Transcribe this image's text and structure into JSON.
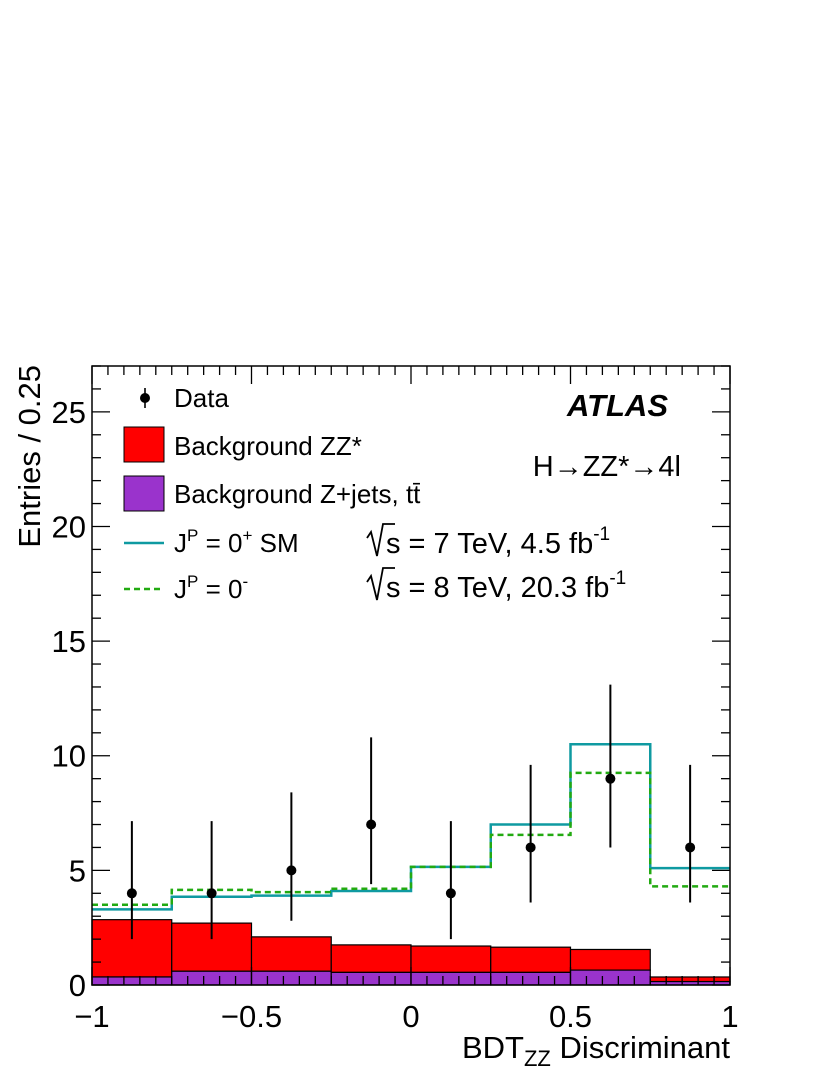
{
  "chart_data": {
    "type": "histogram",
    "xlabel": "BDT",
    "xlabel_sub": "ZZ",
    "xlabel_suffix": " Discriminant",
    "ylabel": "Entries / 0.25",
    "xlim": [
      -1,
      1
    ],
    "ylim": [
      0,
      27
    ],
    "x_ticks": [
      {
        "value": -1,
        "label": "−1"
      },
      {
        "value": -0.5,
        "label": "−0.5"
      },
      {
        "value": 0,
        "label": "0"
      },
      {
        "value": 0.5,
        "label": "0.5"
      },
      {
        "value": 1,
        "label": "1"
      }
    ],
    "y_ticks": [
      {
        "value": 0,
        "label": "0"
      },
      {
        "value": 5,
        "label": "5"
      },
      {
        "value": 10,
        "label": "10"
      },
      {
        "value": 15,
        "label": "15"
      },
      {
        "value": 20,
        "label": "20"
      },
      {
        "value": 25,
        "label": "25"
      }
    ],
    "bin_edges": [
      -1,
      -0.75,
      -0.5,
      -0.25,
      0,
      0.25,
      0.5,
      0.75,
      1
    ],
    "bkg_zjets": [
      0.35,
      0.6,
      0.6,
      0.55,
      0.55,
      0.55,
      0.65,
      0.15
    ],
    "bkg_zz": [
      2.5,
      2.1,
      1.5,
      1.2,
      1.15,
      1.1,
      0.9,
      0.2
    ],
    "sig_0plus_total": [
      3.3,
      3.85,
      3.9,
      4.1,
      5.15,
      7.0,
      10.5,
      5.1
    ],
    "sig_0minus_total": [
      3.5,
      4.15,
      4.05,
      4.2,
      5.15,
      6.55,
      9.25,
      4.3
    ],
    "data_points": [
      {
        "x": -0.875,
        "y": 4,
        "err_low": 2.0,
        "err_high": 3.15
      },
      {
        "x": -0.625,
        "y": 4,
        "err_low": 2.0,
        "err_high": 3.15
      },
      {
        "x": -0.375,
        "y": 5,
        "err_low": 2.2,
        "err_high": 3.4
      },
      {
        "x": -0.125,
        "y": 7,
        "err_low": 2.6,
        "err_high": 3.8
      },
      {
        "x": 0.125,
        "y": 4,
        "err_low": 2.0,
        "err_high": 3.15
      },
      {
        "x": 0.375,
        "y": 6,
        "err_low": 2.4,
        "err_high": 3.6
      },
      {
        "x": 0.625,
        "y": 9,
        "err_low": 3.0,
        "err_high": 4.1
      },
      {
        "x": 0.875,
        "y": 6,
        "err_low": 2.4,
        "err_high": 3.6
      }
    ],
    "colors": {
      "bkg_zz": "#ff0000",
      "bkg_zjets": "#9a33cc",
      "sig_0plus": "#0f9aa1",
      "sig_0minus": "#22aa11",
      "data": "#000000"
    },
    "legend": {
      "data": "Data",
      "bkg_zz": "Background ZZ*",
      "bkg_zjets": "Background Z+jets, tt̄",
      "sig_0plus": "J",
      "sig_0plus_sup": "P",
      "sig_0plus_mid": " = 0",
      "sig_0plus_sup2": "+",
      "sig_0plus_end": " SM",
      "sig_0minus": "J",
      "sig_0minus_sup": "P",
      "sig_0minus_mid": " = 0",
      "sig_0minus_sup2": "-"
    },
    "annotations": {
      "experiment": "ATLAS",
      "process": "H→ZZ*→4l",
      "run1_prefix": "s = 7 TeV, 4.5 fb",
      "run1_sup": "-1",
      "run2_prefix": "s = 8 TeV, 20.3 fb",
      "run2_sup": "-1"
    }
  }
}
